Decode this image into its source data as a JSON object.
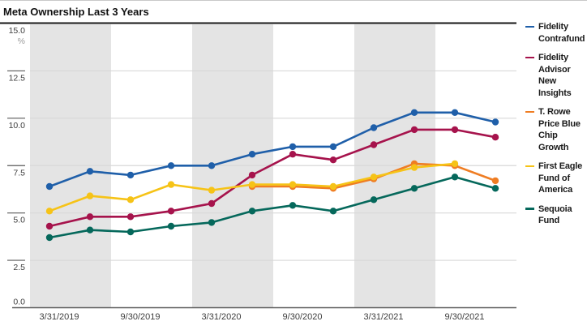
{
  "title": "Meta Ownership Last 3 Years",
  "colors": {
    "shaded_band": "#E4E4E4",
    "gridline": "#D8D8D8",
    "title_rule": "#161616",
    "bottom_axis": "#5A5A5A",
    "tick": "#5A5A5A",
    "axis_label": "#3D3D3D",
    "unit_label": "#9C9C9C"
  },
  "chart_data": {
    "type": "line",
    "title": "Meta Ownership Last 3 Years",
    "y_unit": "%",
    "ylim": [
      0,
      15
    ],
    "ytick_labels": [
      "15.0",
      "12.5",
      "10.0",
      "7.5",
      "5.0",
      "2.5",
      "0.0"
    ],
    "ytick_values": [
      15.0,
      12.5,
      10.0,
      7.5,
      5.0,
      2.5,
      0.0
    ],
    "grid": true,
    "legend_position": "right",
    "shading_note": "first half of each calendar year shaded gray",
    "x": [
      "3/31/2019",
      "6/30/2019",
      "9/30/2019",
      "12/31/2019",
      "3/31/2020",
      "6/30/2020",
      "9/30/2020",
      "12/31/2020",
      "3/31/2021",
      "6/30/2021",
      "9/30/2021",
      "12/31/2021"
    ],
    "xtick_shown_indices": [
      0,
      2,
      4,
      6,
      8,
      10
    ],
    "xtick_shown_labels": [
      "3/31/2019",
      "9/30/2019",
      "3/31/2020",
      "9/30/2020",
      "3/31/2021",
      "9/30/2021"
    ],
    "shaded_band_index_ranges": [
      [
        0,
        1
      ],
      [
        4,
        5
      ],
      [
        8,
        9
      ]
    ],
    "series": [
      {
        "name": "Fidelity Contrafund",
        "color": "#1F5FA9",
        "values": [
          6.4,
          7.2,
          7.0,
          7.5,
          7.5,
          8.1,
          8.5,
          8.5,
          9.5,
          10.3,
          10.3,
          9.8
        ]
      },
      {
        "name": "Fidelity Advisor New Insights",
        "color": "#A6134C",
        "values": [
          4.3,
          4.8,
          4.8,
          5.1,
          5.5,
          7.0,
          8.1,
          7.8,
          8.6,
          9.4,
          9.4,
          9.0
        ]
      },
      {
        "name": "T. Rowe Price Blue Chip Growth",
        "color": "#EF7D23",
        "values": [
          null,
          null,
          null,
          null,
          null,
          6.4,
          6.4,
          6.3,
          6.8,
          7.6,
          7.5,
          6.7
        ]
      },
      {
        "name": "First Eagle Fund of America",
        "color": "#F6C317",
        "values": [
          5.1,
          5.9,
          5.7,
          6.5,
          6.2,
          6.5,
          6.5,
          6.4,
          6.9,
          7.4,
          7.6,
          null
        ]
      },
      {
        "name": "Sequoia Fund",
        "color": "#05685B",
        "values": [
          3.7,
          4.1,
          4.0,
          4.3,
          4.5,
          5.1,
          5.4,
          5.1,
          5.7,
          6.3,
          6.9,
          6.3
        ]
      }
    ]
  }
}
